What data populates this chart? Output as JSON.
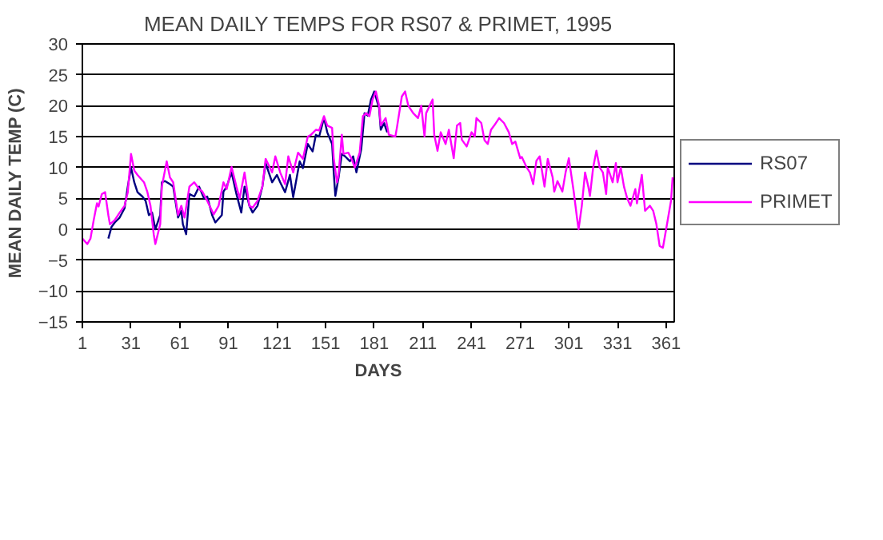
{
  "chart_data": {
    "type": "line",
    "title": "MEAN DAILY TEMPS FOR RS07 & PRIMET, 1995",
    "xlabel": "DAYS",
    "ylabel": "MEAN DAILY TEMP (C)",
    "xlim": [
      1,
      366
    ],
    "xticks": [
      1,
      31,
      61,
      91,
      121,
      151,
      181,
      211,
      241,
      271,
      301,
      331,
      361
    ],
    "ylim": [
      -15,
      30
    ],
    "yticks": [
      -15,
      -10,
      -5,
      0,
      5,
      10,
      15,
      20,
      25,
      30
    ],
    "grid": "y",
    "legend": "right",
    "line_style": "solid",
    "marker": "none",
    "series": [
      {
        "name": "RS07",
        "color": "#000080",
        "x": [
          17,
          19,
          21,
          24,
          27,
          29,
          31,
          33,
          35,
          38,
          40,
          42,
          44,
          46,
          49,
          50,
          52,
          55,
          57,
          60,
          62,
          63,
          65,
          67,
          70,
          73,
          76,
          78,
          81,
          83,
          87,
          88,
          90,
          93,
          96,
          99,
          101,
          104,
          106,
          109,
          112,
          114,
          118,
          121,
          123,
          126,
          129,
          131,
          135,
          137,
          140,
          143,
          145,
          147,
          150,
          152,
          155,
          156,
          157,
          159,
          161,
          163,
          166,
          168,
          170,
          173,
          175,
          177,
          179,
          181,
          184,
          185,
          187,
          189
        ],
        "values": [
          -1.5,
          0.4,
          1.1,
          1.9,
          3.4,
          6.9,
          10,
          7.6,
          6,
          5.3,
          4.6,
          2.3,
          2.7,
          0,
          2.3,
          7.6,
          7.8,
          7.3,
          6.9,
          1.9,
          3,
          0.8,
          -0.8,
          5.7,
          5.3,
          6.9,
          5,
          5.3,
          2.3,
          1.1,
          2.3,
          6.1,
          6.9,
          9.2,
          5.7,
          2.7,
          6.9,
          3.8,
          2.7,
          3.8,
          6.9,
          10.7,
          7.6,
          8.8,
          7.6,
          6,
          8.8,
          5.2,
          11,
          9.9,
          13.8,
          12.6,
          15.3,
          15,
          18,
          15.7,
          13.8,
          9.2,
          5.4,
          8.4,
          12.2,
          11.8,
          11,
          11.8,
          9.2,
          13,
          18.8,
          18.4,
          21,
          22.3,
          19.6,
          16.1,
          17.2,
          15.7
        ]
      },
      {
        "name": "PRIMET",
        "color": "#ff00ff",
        "x": [
          1,
          4,
          6,
          8,
          10,
          11,
          13,
          15,
          17,
          18,
          21,
          24,
          27,
          29,
          31,
          33,
          35,
          39,
          41,
          43,
          45,
          46,
          49,
          50,
          53,
          55,
          57,
          60,
          62,
          64,
          67,
          70,
          73,
          75,
          78,
          82,
          85,
          88,
          90,
          93,
          96,
          98,
          101,
          104,
          106,
          109,
          112,
          114,
          118,
          120,
          123,
          126,
          128,
          131,
          134,
          137,
          140,
          142,
          145,
          147,
          150,
          152,
          155,
          156,
          158,
          159,
          161,
          162,
          165,
          167,
          169,
          172,
          174,
          176,
          178,
          180,
          182,
          184,
          185,
          188,
          190,
          194,
          195,
          198,
          200,
          202,
          205,
          208,
          210,
          212,
          213,
          217,
          218,
          220,
          222,
          225,
          227,
          230,
          232,
          234,
          235,
          238,
          241,
          243,
          244,
          247,
          249,
          251,
          253,
          255,
          258,
          261,
          264,
          266,
          268,
          271,
          272,
          275,
          277,
          279,
          281,
          283,
          286,
          288,
          291,
          292,
          294,
          297,
          299,
          301,
          304,
          306,
          307,
          309,
          311,
          313,
          314,
          316,
          318,
          320,
          322,
          324,
          325,
          328,
          330,
          331,
          333,
          335,
          337,
          339,
          342,
          343,
          346,
          348,
          351,
          353,
          355,
          357,
          359,
          361,
          364,
          365
        ],
        "values": [
          -1.5,
          -2.4,
          -1.5,
          1.5,
          4.2,
          3.7,
          5.7,
          6,
          2.3,
          0.8,
          1.5,
          2.7,
          3.8,
          6,
          12.2,
          9.5,
          8.8,
          7.6,
          6.1,
          3.8,
          -0.8,
          -2.4,
          0.8,
          6.9,
          11,
          8.4,
          7.6,
          2.3,
          3.8,
          1.9,
          6.9,
          7.6,
          6.5,
          6.1,
          4.6,
          2.4,
          3.8,
          7.6,
          6.5,
          10.1,
          6.9,
          5,
          9.2,
          3.8,
          3.5,
          4.6,
          6.9,
          11.4,
          9.2,
          11.8,
          9.2,
          7.3,
          11.8,
          9.2,
          12.4,
          11.4,
          15,
          15.3,
          16.1,
          16,
          18.3,
          16.8,
          16.4,
          11.5,
          7.6,
          8.8,
          15.3,
          12.2,
          12.4,
          11.4,
          10,
          12.4,
          18.3,
          18.8,
          18.3,
          21,
          22.3,
          20,
          16.8,
          18,
          15.3,
          15,
          16.5,
          21.5,
          22.3,
          20,
          18.8,
          18,
          20,
          15,
          18.8,
          21,
          15.3,
          12.7,
          15.7,
          13.8,
          16.1,
          11.5,
          16.8,
          17.2,
          14.5,
          13.4,
          15.7,
          15,
          18,
          17.2,
          14.4,
          13.8,
          16.1,
          16.8,
          18,
          17.2,
          15.7,
          13.8,
          14.2,
          11.5,
          11.7,
          10,
          9.2,
          7.3,
          11.1,
          11.8,
          6.9,
          11.4,
          8.4,
          6.1,
          7.8,
          6.1,
          9.2,
          11.5,
          6.1,
          1.9,
          0,
          3.8,
          9.2,
          6.9,
          5.4,
          10,
          12.7,
          10,
          9.2,
          5.7,
          10,
          7.6,
          10.7,
          7.6,
          10,
          6.9,
          5,
          3.8,
          6.5,
          4.2,
          8.8,
          3,
          3.8,
          3,
          0.8,
          -2.7,
          -3,
          0,
          4.6,
          8.4
        ]
      }
    ]
  }
}
